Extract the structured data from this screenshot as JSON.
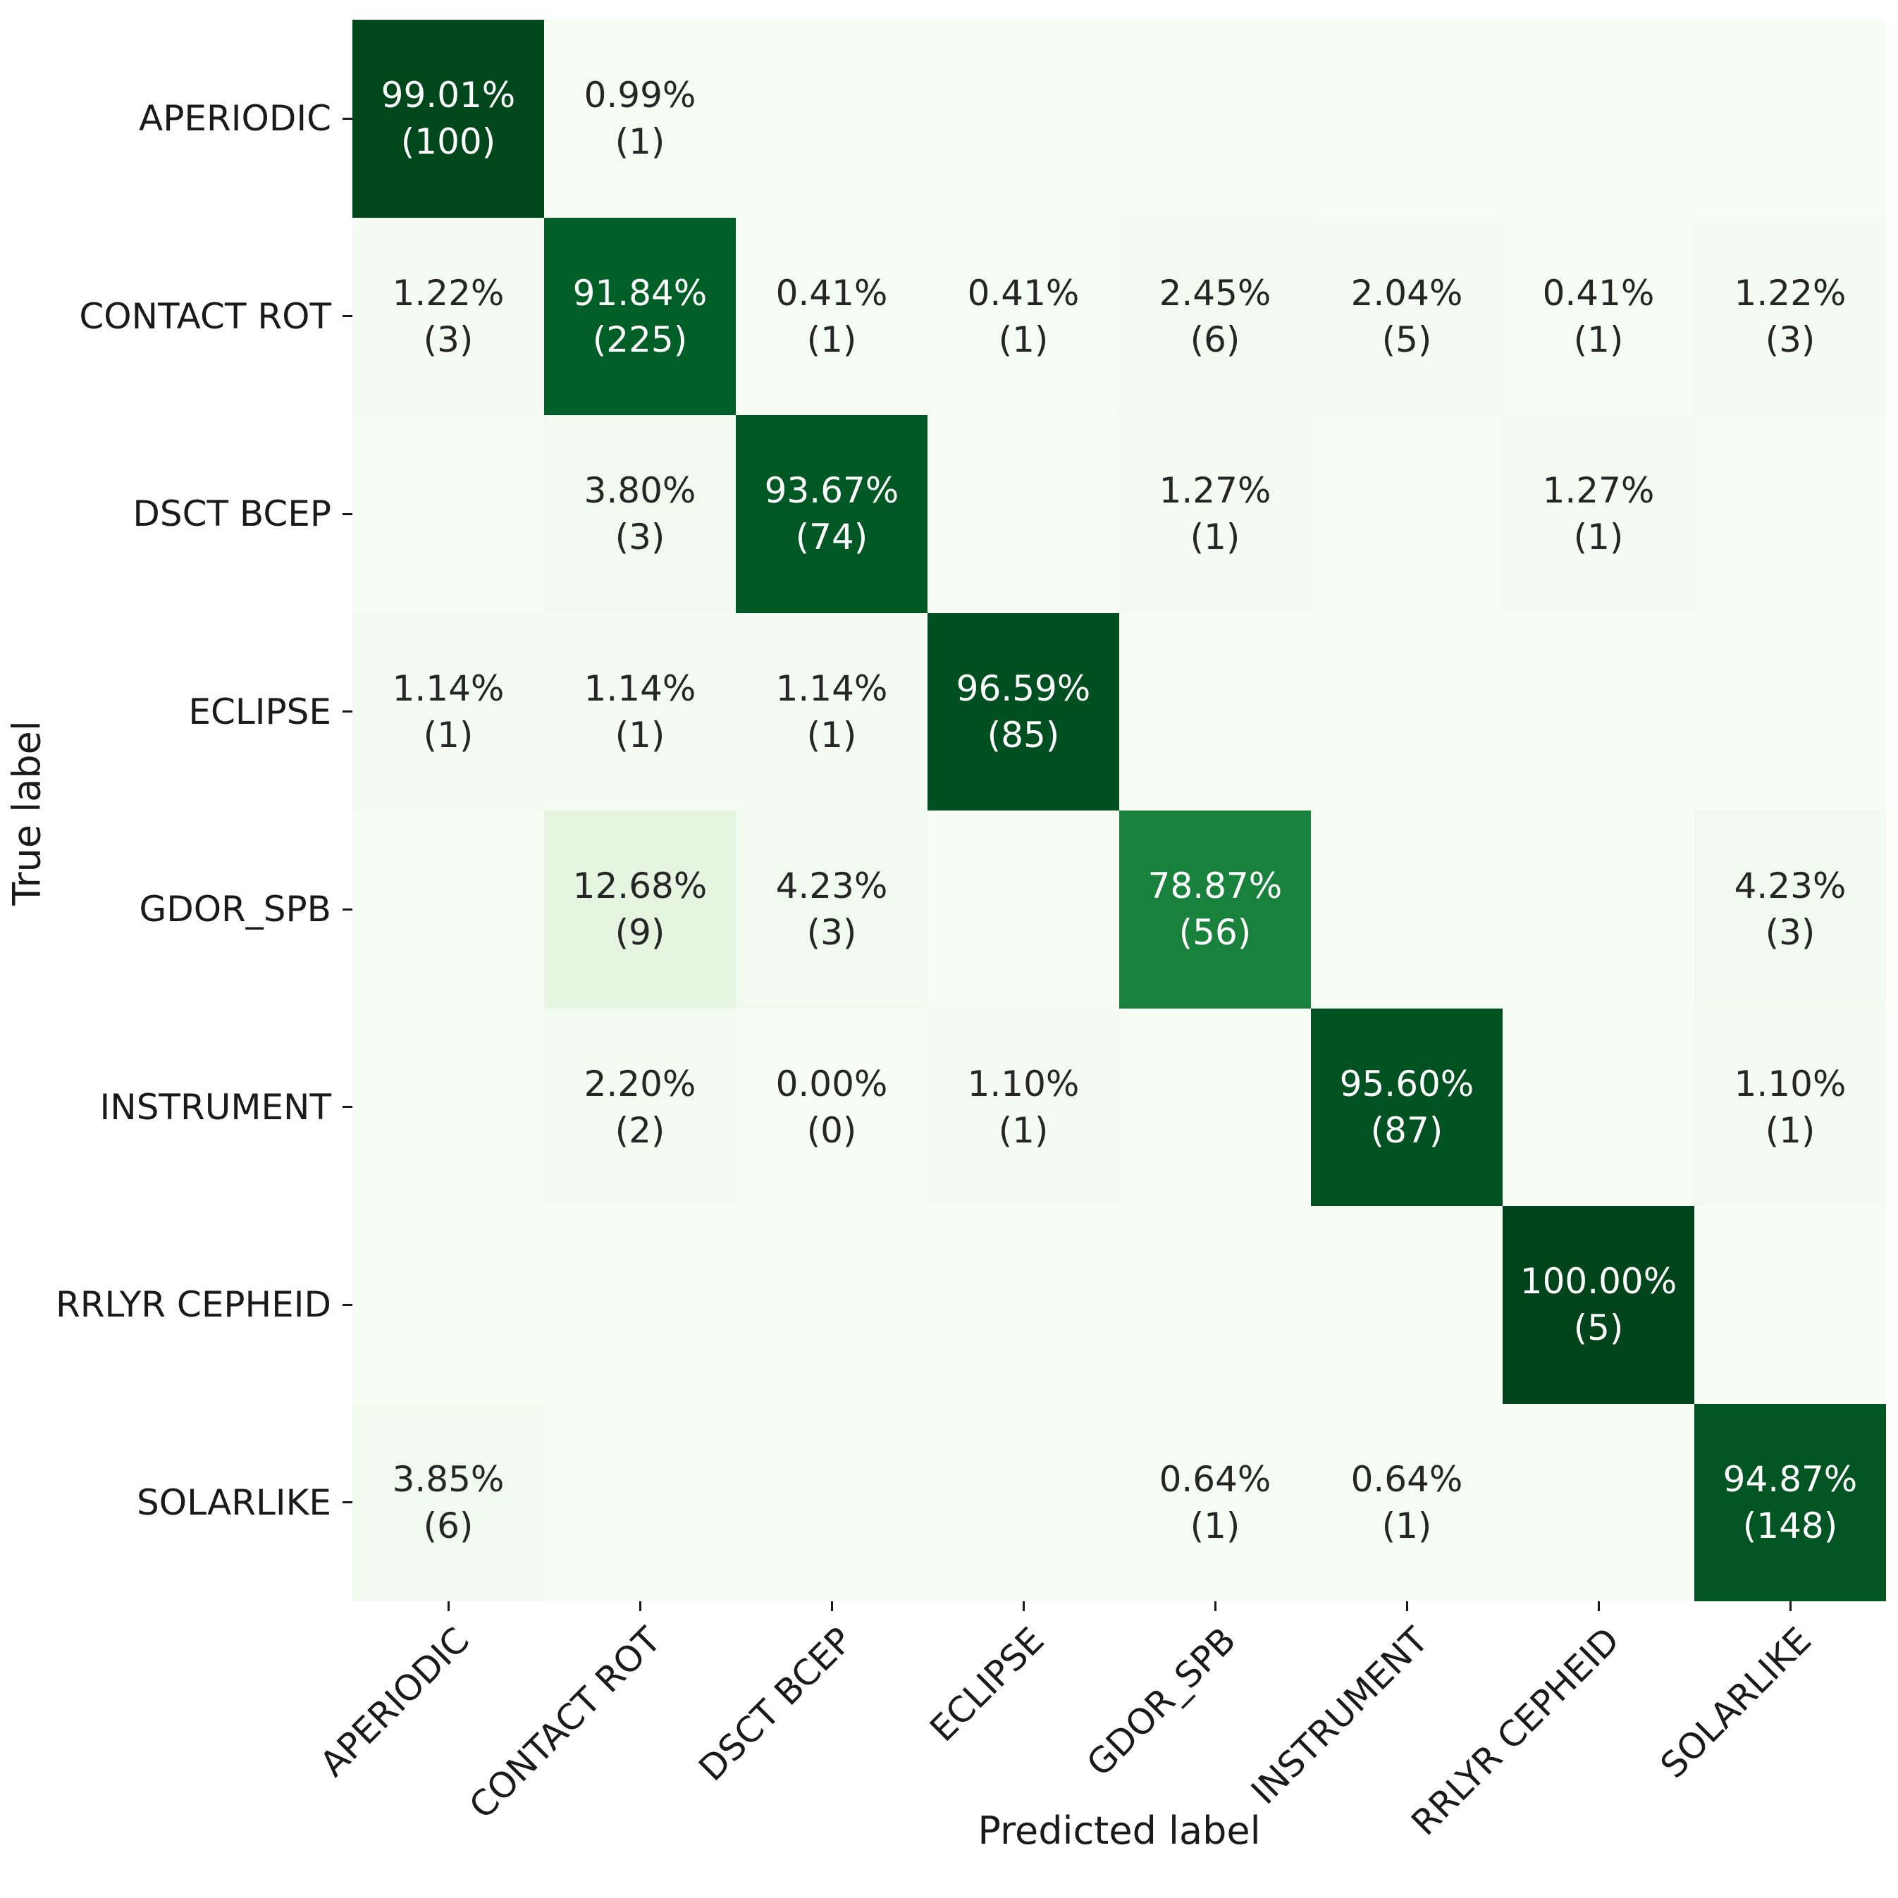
{
  "figure": {
    "background": "#ffffff",
    "tick_color": "#1a1a1a",
    "label_color": "#1a1a1a"
  },
  "chart_data": {
    "type": "heatmap",
    "subtype": "confusion-matrix",
    "title": "",
    "xlabel": "Predicted label",
    "ylabel": "True label",
    "x_tick_labels": [
      "APERIODIC",
      "CONTACT ROT",
      "DSCT BCEP",
      "ECLIPSE",
      "GDOR_SPB",
      "INSTRUMENT",
      "RRLYR CEPHEID",
      "SOLARLIKE"
    ],
    "y_tick_labels": [
      "APERIODIC",
      "CONTACT ROT",
      "DSCT BCEP",
      "ECLIPSE",
      "GDOR_SPB",
      "INSTRUMENT",
      "RRLYR CEPHEID",
      "SOLARLIKE"
    ],
    "cell_value_format": "percent_and_count",
    "matrix": [
      [
        [
          99.01,
          100
        ],
        [
          0.99,
          1
        ],
        null,
        null,
        null,
        null,
        null,
        null
      ],
      [
        [
          1.22,
          3
        ],
        [
          91.84,
          225
        ],
        [
          0.41,
          1
        ],
        [
          0.41,
          1
        ],
        [
          2.45,
          6
        ],
        [
          2.04,
          5
        ],
        [
          0.41,
          1
        ],
        [
          1.22,
          3
        ]
      ],
      [
        null,
        [
          3.8,
          3
        ],
        [
          93.67,
          74
        ],
        null,
        [
          1.27,
          1
        ],
        null,
        [
          1.27,
          1
        ],
        null
      ],
      [
        [
          1.14,
          1
        ],
        [
          1.14,
          1
        ],
        [
          1.14,
          1
        ],
        [
          96.59,
          85
        ],
        null,
        null,
        null,
        null
      ],
      [
        null,
        [
          12.68,
          9
        ],
        [
          4.23,
          3
        ],
        null,
        [
          78.87,
          56
        ],
        null,
        null,
        [
          4.23,
          3
        ]
      ],
      [
        null,
        [
          2.2,
          2
        ],
        [
          0.0,
          0
        ],
        [
          1.1,
          1
        ],
        null,
        [
          95.6,
          87
        ],
        null,
        [
          1.1,
          1
        ]
      ],
      [
        null,
        null,
        null,
        null,
        null,
        null,
        [
          100.0,
          5
        ],
        null
      ],
      [
        [
          3.85,
          6
        ],
        null,
        null,
        null,
        [
          0.64,
          1
        ],
        [
          0.64,
          1
        ],
        null,
        [
          94.87,
          148
        ]
      ]
    ],
    "colormap": {
      "name": "Greens",
      "vmin": 0,
      "vmax": 100,
      "stops": [
        "#f7fcf5",
        "#e5f5e0",
        "#c7e9c0",
        "#a1d99b",
        "#74c476",
        "#41ab5d",
        "#238b45",
        "#006d2c",
        "#00441b"
      ]
    },
    "text_colors": {
      "light": "#ffffff",
      "dark": "#262626"
    },
    "grid": false,
    "legend": "none",
    "colorbar": "none"
  }
}
